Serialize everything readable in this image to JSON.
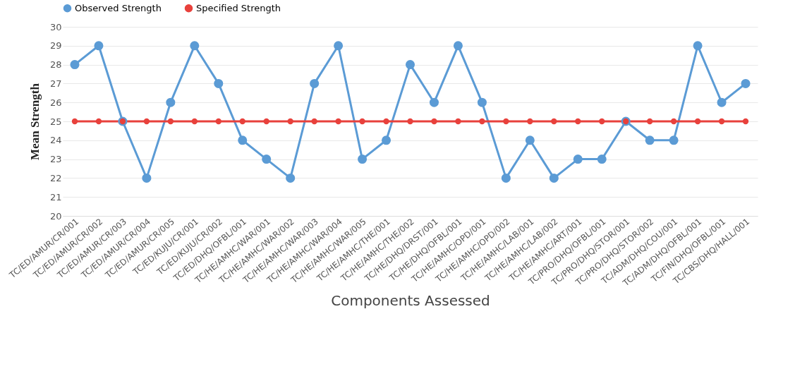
{
  "chart_data": {
    "type": "line",
    "xlabel": "Components Assessed",
    "ylabel": "Mean Strength",
    "categories": [
      "TC/ED/AMUR/CR/001",
      "TC/ED/AMUR/CR/002",
      "TC/ED/AMUR/CR/003",
      "TC/ED/AMUR/CR/004",
      "TC/ED/AMUR/CR/005",
      "TC/ED/KUJU/CR/001",
      "TC/ED/KUJU/CR/002",
      "TC/ED/DHQ/OFBL/001",
      "TC/HE/AMHC/WAR/001",
      "TC/HE/AMHC/WAR/002",
      "TC/HE/AMHC/WAR/003",
      "TC/HE/AMHC/WAR/004",
      "TC/HE/AMHC/WAR/005",
      "TC/HE/AMHC/THE/001",
      "TC/HE/AMHC/THE/002",
      "TC/HE/DHQ/DRST/001",
      "TC/HE/DHQ/OFBL/001",
      "TC/HE/AMHC/OPD/001",
      "TC/HE/AMHC/OPD/002",
      "TC/HE/AMHC/LAB/001",
      "TC/HE/AMHC/LAB/002",
      "TC/HE/AMHC/ART/001",
      "TC/PRO/DHQ/OFBL/001",
      "TC/PRO/DHQ/STOR/001",
      "TC/PRO/DHQ/STOR/002",
      "TC/ADM/DHQ/COU/001",
      "TC/ADM/DHQ/OFBL/001",
      "TC/FIN/DHQ/OFBL/001",
      "TC/CBS/DHQ/HALL/001"
    ],
    "series": [
      {
        "name": "Observed Strength",
        "color": "#5b9bd5",
        "values": [
          28,
          29,
          25,
          22,
          26,
          29,
          27,
          24,
          23,
          22,
          27,
          29,
          23,
          24,
          28,
          26,
          29,
          26,
          22,
          24,
          22,
          23,
          23,
          25,
          24,
          24,
          29,
          26,
          27
        ]
      },
      {
        "name": "Specified Strength",
        "color": "#e8413c",
        "values": [
          25,
          25,
          25,
          25,
          25,
          25,
          25,
          25,
          25,
          25,
          25,
          25,
          25,
          25,
          25,
          25,
          25,
          25,
          25,
          25,
          25,
          25,
          25,
          25,
          25,
          25,
          25,
          25,
          25
        ]
      }
    ],
    "ylim": [
      20,
      30
    ],
    "yticks": [
      20,
      21,
      22,
      23,
      24,
      25,
      26,
      27,
      28,
      29,
      30
    ],
    "grid": "y",
    "legend": "top",
    "marker": "circle",
    "line_style": "solid"
  }
}
